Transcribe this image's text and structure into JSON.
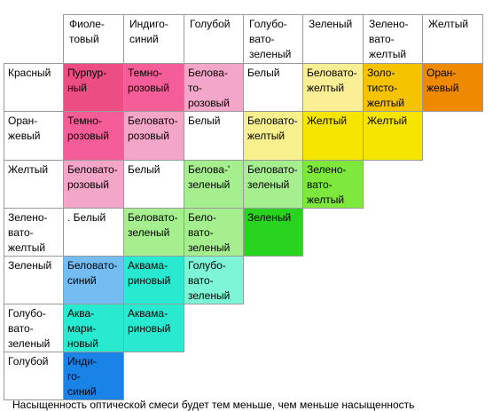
{
  "columns": [
    "Фиоле-\nтовый",
    "Индиго-\nсиний",
    "Голубой",
    "Голубо-\nвато-\nзеленый",
    "Зеленый",
    "Зелено-\nвато-\nжелтый",
    "Желтый"
  ],
  "rows": [
    {
      "label": "Красный",
      "cells": [
        {
          "text": "Пурпур-\nный",
          "color": "#ec4d82"
        },
        {
          "text": "Темно-\nрозовый",
          "color": "#f45d98"
        },
        {
          "text": "Белова-\nто-\nрозовый",
          "color": "#f4a6c8"
        },
        {
          "text": "Белый",
          "color": "#ffffff"
        },
        {
          "text": "Беловато-\nжелтый",
          "color": "#faef94"
        },
        {
          "text": "Золо-\nтисто-\nжелтый",
          "color": "#f6c300"
        },
        {
          "text": "Оран-\nжевый",
          "color": "#ef8a00"
        }
      ]
    },
    {
      "label": "Оран-\nжевый",
      "cells": [
        {
          "text": "Темно-\nрозовый",
          "color": "#f45d98"
        },
        {
          "text": "Беловато-\nрозовый",
          "color": "#f4a6c8"
        },
        {
          "text": "Белый",
          "color": "#ffffff"
        },
        {
          "text": "Беловато-\nжелтый",
          "color": "#f7f08c"
        },
        {
          "text": "Желтый",
          "color": "#f6e500"
        },
        {
          "text": "Желтый",
          "color": "#f6e500"
        }
      ]
    },
    {
      "label": "Желтый",
      "cells": [
        {
          "text": "Беловато-\nрозовый",
          "color": "#f4a6c8"
        },
        {
          "text": "Белый",
          "color": "#ffffff"
        },
        {
          "text": "Белова-'\nзеленый",
          "color": "#a6ef8e"
        },
        {
          "text": "Беловато-\nзеленый",
          "color": "#a6ef8e"
        },
        {
          "text": "Зелено-\nвато-\nжелтый",
          "color": "#7fe83c"
        }
      ]
    },
    {
      "label": "Зелено-\nвато-\nжелтый",
      "cells": [
        {
          "text": ". Белый",
          "color": "#ffffff"
        },
        {
          "text": "Беловато-\nзеленый",
          "color": "#a6ef8e"
        },
        {
          "text": "Бело-\nвато-\nзеленый",
          "color": "#a6ef8e"
        },
        {
          "text": "Зеленый",
          "color": "#28d41e"
        }
      ]
    },
    {
      "label": "Зеленый",
      "cells": [
        {
          "text": "Беловато-\nсиний",
          "color": "#74bdf2"
        },
        {
          "text": "Аквама-\nриновый",
          "color": "#28ead0"
        },
        {
          "text": "Голубо-\nвато-\nзеленый",
          "color": "#7ef5d6"
        }
      ]
    },
    {
      "label": "Голубо-\nвато-\nзеленый",
      "cells": [
        {
          "text": "Аква-\nмари-\nновый",
          "color": "#28ead0"
        },
        {
          "text": "Аквама-\nриновый",
          "color": "#28ead0"
        }
      ]
    },
    {
      "label": "Голубой",
      "cells": [
        {
          "text": "Инди-\nго-\nсиний",
          "color": "#1a83e6"
        }
      ]
    }
  ],
  "caption": "Насыщенность оптической смеси будет тем меньше, чем меньше насыщенность"
}
